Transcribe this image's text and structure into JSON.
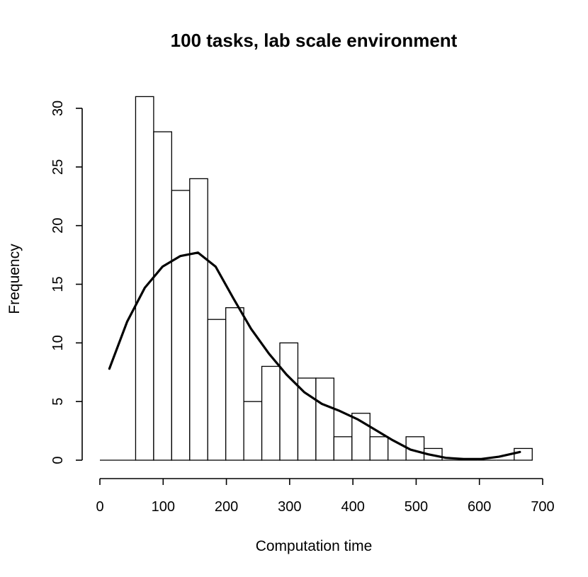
{
  "chart_data": {
    "type": "bar",
    "title": "100 tasks, lab scale environment",
    "xlabel": "Computation time",
    "ylabel": "Frequency",
    "xlim": [
      0,
      700
    ],
    "ylim": [
      0,
      31
    ],
    "xticks": [
      "0",
      "100",
      "200",
      "300",
      "400",
      "500",
      "600",
      "700"
    ],
    "yticks": [
      "0",
      "5",
      "10",
      "15",
      "20",
      "25",
      "30"
    ],
    "bins": [
      {
        "start": 0,
        "end": 56.5,
        "count": 0
      },
      {
        "start": 56.5,
        "end": 85,
        "count": 31
      },
      {
        "start": 85,
        "end": 113.5,
        "count": 28
      },
      {
        "start": 113.5,
        "end": 142,
        "count": 23
      },
      {
        "start": 142,
        "end": 170.5,
        "count": 24
      },
      {
        "start": 170.5,
        "end": 199,
        "count": 12
      },
      {
        "start": 199,
        "end": 227.5,
        "count": 13
      },
      {
        "start": 227.5,
        "end": 256,
        "count": 5
      },
      {
        "start": 256,
        "end": 284.5,
        "count": 8
      },
      {
        "start": 284.5,
        "end": 313,
        "count": 10
      },
      {
        "start": 313,
        "end": 341.5,
        "count": 7
      },
      {
        "start": 341.5,
        "end": 370,
        "count": 7
      },
      {
        "start": 370,
        "end": 398.5,
        "count": 2
      },
      {
        "start": 398.5,
        "end": 427,
        "count": 4
      },
      {
        "start": 427,
        "end": 455.5,
        "count": 2
      },
      {
        "start": 455.5,
        "end": 484,
        "count": 0
      },
      {
        "start": 484,
        "end": 512.5,
        "count": 2
      },
      {
        "start": 512.5,
        "end": 541,
        "count": 1
      },
      {
        "start": 541,
        "end": 569.5,
        "count": 0
      },
      {
        "start": 569.5,
        "end": 598,
        "count": 0
      },
      {
        "start": 598,
        "end": 626.5,
        "count": 0
      },
      {
        "start": 626.5,
        "end": 655,
        "count": 0
      },
      {
        "start": 655,
        "end": 683.5,
        "count": 1
      }
    ],
    "density_curve": {
      "x": [
        15,
        43,
        71,
        99,
        127,
        155,
        183,
        211,
        239,
        267,
        295,
        323,
        351,
        379,
        407,
        435,
        463,
        491,
        519,
        547,
        575,
        603,
        631,
        664
      ],
      "y": [
        7.8,
        11.8,
        14.7,
        16.5,
        17.4,
        17.7,
        16.5,
        13.8,
        11.2,
        9.1,
        7.3,
        5.8,
        4.8,
        4.2,
        3.5,
        2.6,
        1.7,
        0.9,
        0.5,
        0.2,
        0.1,
        0.1,
        0.3,
        0.7
      ]
    },
    "grid": false,
    "legend": false
  }
}
